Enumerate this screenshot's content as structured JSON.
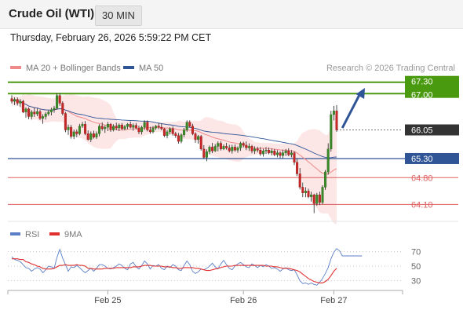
{
  "header": {
    "title": "Crude Oil (WTI)",
    "timeframe": "30 MIN",
    "datetime": "Thursday, February 26, 2026 5:59:22 PM CET"
  },
  "chart_data": [
    {
      "type": "candlestick",
      "legend": [
        {
          "name": "MA 20 + Bollinger Bands",
          "color": "#f08a8a"
        },
        {
          "name": "MA 50",
          "color": "#2f5597"
        }
      ],
      "legend_placement": "top-left",
      "credit": "Research © 2026 Trading Central",
      "ylim": [
        63.86,
        67.52
      ],
      "x_ticks": [
        {
          "label": "Feb 25",
          "index": 34
        },
        {
          "label": "Feb 26",
          "index": 82
        },
        {
          "label": "Feb 27",
          "index": 114
        }
      ],
      "levels": [
        {
          "value": 67.3,
          "label": "67.30",
          "kind": "resistance",
          "color": "#4a9a10"
        },
        {
          "value": 67.0,
          "label": "67.00",
          "kind": "resistance",
          "color": "#4a9a10"
        },
        {
          "value": 66.05,
          "label": "66.05",
          "kind": "last-price",
          "color": "#333333"
        },
        {
          "value": 65.3,
          "label": "65.30",
          "kind": "pivot",
          "color": "#2f5597"
        },
        {
          "value": 64.8,
          "label": "64.80",
          "kind": "support",
          "color": "#e06060"
        },
        {
          "value": 64.1,
          "label": "64.10",
          "kind": "support",
          "color": "#e06060"
        }
      ],
      "forecast_arrow": {
        "from": {
          "index": 117,
          "price": 66.1
        },
        "to": {
          "index": 125,
          "price": 67.15
        },
        "color": "#2f5597"
      },
      "candles": [
        [
          66.87,
          66.96,
          66.74,
          66.8
        ],
        [
          66.8,
          66.9,
          66.7,
          66.85
        ],
        [
          66.85,
          66.9,
          66.69,
          66.75
        ],
        [
          66.75,
          66.86,
          66.65,
          66.8
        ],
        [
          66.8,
          66.84,
          66.49,
          66.52
        ],
        [
          66.52,
          66.64,
          66.37,
          66.6
        ],
        [
          66.6,
          66.64,
          66.33,
          66.4
        ],
        [
          66.4,
          66.57,
          66.32,
          66.52
        ],
        [
          66.52,
          66.63,
          66.39,
          66.47
        ],
        [
          66.47,
          66.61,
          66.41,
          66.53
        ],
        [
          66.53,
          66.58,
          66.31,
          66.35
        ],
        [
          66.35,
          66.46,
          66.21,
          66.4
        ],
        [
          66.4,
          66.52,
          66.32,
          66.47
        ],
        [
          66.47,
          66.56,
          66.42,
          66.52
        ],
        [
          66.52,
          66.63,
          66.43,
          66.58
        ],
        [
          66.58,
          66.68,
          66.5,
          66.62
        ],
        [
          66.62,
          67.01,
          66.58,
          66.95
        ],
        [
          66.95,
          67.01,
          66.68,
          66.75
        ],
        [
          66.75,
          66.8,
          66.43,
          66.48
        ],
        [
          66.48,
          66.52,
          65.99,
          66.05
        ],
        [
          66.05,
          66.19,
          65.92,
          66.12
        ],
        [
          66.12,
          66.18,
          65.82,
          65.88
        ],
        [
          65.88,
          66.06,
          65.81,
          66.0
        ],
        [
          66.0,
          66.06,
          65.86,
          65.95
        ],
        [
          65.95,
          66.21,
          65.91,
          66.15
        ],
        [
          66.15,
          66.26,
          66.1,
          66.2
        ],
        [
          66.2,
          66.28,
          65.91,
          65.95
        ],
        [
          65.95,
          66.04,
          65.77,
          65.8
        ],
        [
          65.8,
          66.01,
          65.73,
          65.95
        ],
        [
          65.95,
          66.03,
          65.82,
          65.86
        ],
        [
          65.86,
          66.01,
          65.81,
          65.95
        ],
        [
          65.95,
          66.2,
          65.88,
          66.15
        ],
        [
          66.15,
          66.25,
          66.03,
          66.08
        ],
        [
          66.08,
          66.17,
          65.97,
          66.12
        ],
        [
          66.12,
          66.26,
          66.02,
          66.2
        ],
        [
          66.2,
          66.23,
          66.0,
          66.05
        ],
        [
          66.05,
          66.2,
          66.01,
          66.15
        ],
        [
          66.15,
          66.24,
          66.04,
          66.1
        ],
        [
          66.1,
          66.22,
          66.02,
          66.18
        ],
        [
          66.18,
          66.23,
          66.05,
          66.08
        ],
        [
          66.08,
          66.18,
          66.04,
          66.14
        ],
        [
          66.14,
          66.23,
          66.07,
          66.2
        ],
        [
          66.2,
          66.27,
          66.09,
          66.12
        ],
        [
          66.12,
          66.22,
          66.03,
          66.17
        ],
        [
          66.17,
          66.23,
          66.07,
          66.1
        ],
        [
          66.1,
          66.16,
          65.94,
          66.0
        ],
        [
          66.0,
          66.16,
          65.93,
          66.12
        ],
        [
          66.12,
          66.3,
          66.05,
          66.25
        ],
        [
          66.25,
          66.3,
          66.01,
          66.05
        ],
        [
          66.05,
          66.13,
          65.95,
          66.0
        ],
        [
          66.0,
          66.15,
          65.96,
          66.1
        ],
        [
          66.1,
          66.18,
          66.05,
          66.15
        ],
        [
          66.15,
          66.23,
          66.07,
          66.12
        ],
        [
          66.12,
          66.21,
          66.04,
          66.08
        ],
        [
          66.08,
          66.1,
          65.86,
          65.9
        ],
        [
          65.9,
          66.05,
          65.83,
          66.0
        ],
        [
          66.0,
          66.12,
          65.93,
          66.08
        ],
        [
          66.08,
          66.14,
          65.9,
          65.95
        ],
        [
          65.95,
          66.0,
          65.84,
          65.9
        ],
        [
          65.9,
          65.97,
          65.69,
          65.75
        ],
        [
          65.75,
          65.96,
          65.7,
          65.92
        ],
        [
          65.92,
          66.1,
          65.86,
          66.05
        ],
        [
          66.05,
          66.3,
          66.0,
          66.25
        ],
        [
          66.25,
          66.3,
          66.11,
          66.15
        ],
        [
          66.15,
          66.21,
          65.91,
          65.95
        ],
        [
          65.95,
          65.99,
          65.71,
          65.8
        ],
        [
          65.8,
          65.92,
          65.69,
          65.88
        ],
        [
          65.88,
          65.92,
          65.51,
          65.55
        ],
        [
          65.55,
          65.65,
          65.29,
          65.33
        ],
        [
          65.33,
          65.54,
          65.23,
          65.48
        ],
        [
          65.48,
          65.64,
          65.41,
          65.6
        ],
        [
          65.6,
          65.71,
          65.44,
          65.5
        ],
        [
          65.5,
          65.68,
          65.47,
          65.62
        ],
        [
          65.62,
          65.75,
          65.49,
          65.7
        ],
        [
          65.7,
          65.76,
          65.51,
          65.55
        ],
        [
          65.55,
          65.67,
          65.52,
          65.62
        ],
        [
          65.62,
          65.71,
          65.53,
          65.58
        ],
        [
          65.58,
          65.66,
          65.46,
          65.5
        ],
        [
          65.5,
          65.66,
          65.43,
          65.6
        ],
        [
          65.6,
          65.67,
          65.48,
          65.52
        ],
        [
          65.52,
          65.62,
          65.45,
          65.58
        ],
        [
          65.58,
          65.74,
          65.5,
          65.7
        ],
        [
          65.7,
          65.74,
          65.59,
          65.65
        ],
        [
          65.65,
          65.75,
          65.52,
          65.58
        ],
        [
          65.58,
          65.7,
          65.5,
          65.62
        ],
        [
          65.62,
          65.66,
          65.44,
          65.5
        ],
        [
          65.5,
          65.62,
          65.42,
          65.55
        ],
        [
          65.55,
          65.61,
          65.46,
          65.52
        ],
        [
          65.52,
          65.6,
          65.37,
          65.42
        ],
        [
          65.42,
          65.56,
          65.35,
          65.5
        ],
        [
          65.5,
          65.6,
          65.42,
          65.52
        ],
        [
          65.52,
          65.59,
          65.41,
          65.45
        ],
        [
          65.45,
          65.56,
          65.38,
          65.5
        ],
        [
          65.5,
          65.55,
          65.36,
          65.4
        ],
        [
          65.4,
          65.52,
          65.33,
          65.45
        ],
        [
          65.45,
          65.49,
          65.31,
          65.38
        ],
        [
          65.38,
          65.53,
          65.3,
          65.45
        ],
        [
          65.45,
          65.55,
          65.37,
          65.5
        ],
        [
          65.5,
          65.57,
          65.36,
          65.4
        ],
        [
          65.4,
          65.52,
          65.33,
          65.45
        ],
        [
          65.45,
          65.49,
          65.13,
          65.2
        ],
        [
          65.2,
          65.29,
          64.84,
          64.9
        ],
        [
          64.9,
          65.05,
          64.49,
          64.55
        ],
        [
          64.55,
          64.67,
          64.29,
          64.4
        ],
        [
          64.4,
          64.55,
          64.29,
          64.45
        ],
        [
          64.45,
          64.51,
          64.26,
          64.3
        ],
        [
          64.3,
          64.43,
          64.17,
          64.35
        ],
        [
          64.35,
          64.38,
          63.87,
          64.12
        ],
        [
          64.12,
          64.4,
          64.06,
          64.35
        ],
        [
          64.35,
          64.43,
          64.08,
          64.15
        ],
        [
          64.15,
          64.6,
          64.1,
          64.55
        ],
        [
          64.55,
          65.0,
          64.48,
          64.95
        ],
        [
          64.95,
          65.7,
          64.88,
          65.55
        ],
        [
          65.55,
          66.55,
          65.48,
          66.45
        ],
        [
          66.45,
          66.68,
          66.3,
          66.55
        ],
        [
          66.55,
          66.7,
          66.0,
          66.05
        ]
      ]
    },
    {
      "type": "line",
      "legend": [
        {
          "name": "RSI",
          "color": "#5b7fc7"
        },
        {
          "name": "9MA",
          "color": "#e03030"
        }
      ],
      "ylim": [
        21,
        79
      ],
      "y_ticks": [
        70,
        50,
        30
      ],
      "series": [
        {
          "name": "RSI",
          "color": "#5b7fc7",
          "values": [
            63,
            59,
            58,
            56,
            52,
            48,
            47,
            43,
            46,
            48,
            46,
            41,
            45,
            50,
            49,
            47,
            62,
            73,
            61,
            52,
            43,
            49,
            48,
            51,
            48,
            44,
            41,
            44,
            47,
            43,
            47,
            52,
            52,
            50,
            47,
            46,
            48,
            50,
            53,
            51,
            47,
            45,
            53,
            55,
            49,
            46,
            51,
            57,
            53,
            46,
            51,
            50,
            52,
            47,
            45,
            50,
            48,
            52,
            50,
            45,
            44,
            51,
            57,
            52,
            43,
            40,
            42,
            46,
            45,
            47,
            50,
            54,
            49,
            46,
            53,
            58,
            52,
            47,
            45,
            50,
            53,
            55,
            52,
            49,
            48,
            53,
            51,
            48,
            51,
            49,
            52,
            50,
            47,
            48,
            46,
            43,
            46,
            48,
            45,
            44,
            45,
            38,
            30,
            26,
            27,
            25,
            27,
            25,
            24,
            28,
            33,
            40,
            48,
            60,
            69,
            74,
            71,
            64,
            64,
            64,
            64,
            64,
            64,
            64,
            64
          ]
        },
        {
          "name": "9MA",
          "color": "#e03030",
          "values": [
            60,
            60,
            60,
            59,
            59,
            56,
            55,
            53,
            52,
            50,
            49,
            47,
            46,
            46,
            46,
            47,
            49,
            51,
            51,
            52,
            51,
            51,
            51,
            52,
            51,
            51,
            50,
            47,
            47,
            46,
            46,
            46,
            46,
            47,
            47,
            47,
            47,
            48,
            48,
            48,
            48,
            48,
            48,
            49,
            49,
            49,
            50,
            51,
            51,
            51,
            50,
            50,
            50,
            50,
            49,
            49,
            49,
            48,
            48,
            47,
            47,
            48,
            48,
            48,
            48,
            47,
            47,
            46,
            45,
            44,
            44,
            45,
            46,
            47,
            48,
            49,
            50,
            50,
            50,
            51,
            51,
            51,
            51,
            51,
            51,
            51,
            51,
            51,
            51,
            51,
            50,
            50,
            50,
            49,
            49,
            48,
            47,
            47,
            47,
            46,
            45,
            44,
            42,
            39,
            36,
            33,
            31,
            29,
            28,
            27,
            27,
            29,
            32,
            37,
            43,
            47
          ]
        }
      ]
    }
  ]
}
